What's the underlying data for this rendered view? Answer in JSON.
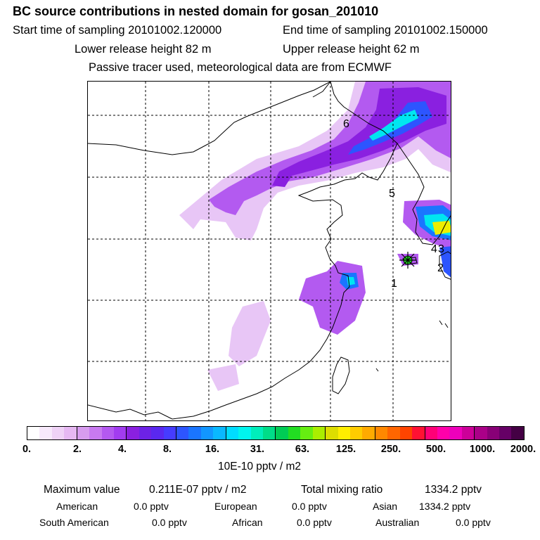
{
  "header": {
    "title": "BC  source contributions in nested domain for gosan_201010",
    "start_label": "Start time of sampling 20101002.120000",
    "end_label": "End time of sampling 20101002.150000",
    "lower_label": "Lower release height   82 m",
    "upper_label": "Upper release height   62 m",
    "tracer_note": "Passive tracer used, meteorological data are from ECMWF"
  },
  "map": {
    "region_labels": [
      "1",
      "2",
      "3",
      "4",
      "5",
      "6"
    ],
    "receptor_marker": "gosan-receptor"
  },
  "colorbar": {
    "tick_labels": [
      "0.",
      "2.",
      "4.",
      "8.",
      "16.",
      "31.",
      "63.",
      "125.",
      "250.",
      "500.",
      "1000.",
      "2000."
    ],
    "unit": "10E-10 pptv / m2",
    "colors": [
      "#ffffff",
      "#f7e9fb",
      "#efd2f6",
      "#e6b8f2",
      "#d79cef",
      "#c87af0",
      "#b459f0",
      "#a23cf0",
      "#8a20e0",
      "#6d22e6",
      "#5a28f0",
      "#463cff",
      "#2d55ff",
      "#1a75ff",
      "#1296ff",
      "#0ab8ff",
      "#00dcff",
      "#00f5ee",
      "#00eebb",
      "#00dd88",
      "#00cc55",
      "#22dd22",
      "#66ee11",
      "#aaee00",
      "#dddd00",
      "#ffee00",
      "#ffcc00",
      "#ffaa00",
      "#ff8800",
      "#ff6600",
      "#ff4400",
      "#ff1133",
      "#ff0077",
      "#ff00aa",
      "#ee00bb",
      "#cc0099",
      "#aa0088",
      "#880077",
      "#660066",
      "#440044"
    ]
  },
  "chart_data": {
    "type": "heatmap",
    "title": "BC  source contributions in nested domain for gosan_201010",
    "colorbar_ticks": [
      0,
      2,
      4,
      8,
      16,
      31,
      63,
      125,
      250,
      500,
      1000,
      2000
    ],
    "unit": "10E-10 pptv / m2",
    "maximum_value": "0.211E-07 pptv / m2",
    "total_mixing_ratio_pptv": 1334.2,
    "contributions_pptv": {
      "American": 0.0,
      "European": 0.0,
      "Asian": 1334.2,
      "South American": 0.0,
      "African": 0.0,
      "Australian": 0.0
    }
  },
  "summary": {
    "max_label": "Maximum value",
    "max_value": "0.211E-07 pptv / m2",
    "total_label": "Total mixing ratio",
    "total_value": "1334.2 pptv",
    "american_label": "American",
    "american_value": "0.0 pptv",
    "european_label": "European",
    "european_value": "0.0 pptv",
    "asian_label": "Asian",
    "asian_value": "1334.2 pptv",
    "south_american_label": "South American",
    "south_american_value": "0.0 pptv",
    "african_label": "African",
    "african_value": "0.0 pptv",
    "australian_label": "Australian",
    "australian_value": "0.0 pptv"
  }
}
